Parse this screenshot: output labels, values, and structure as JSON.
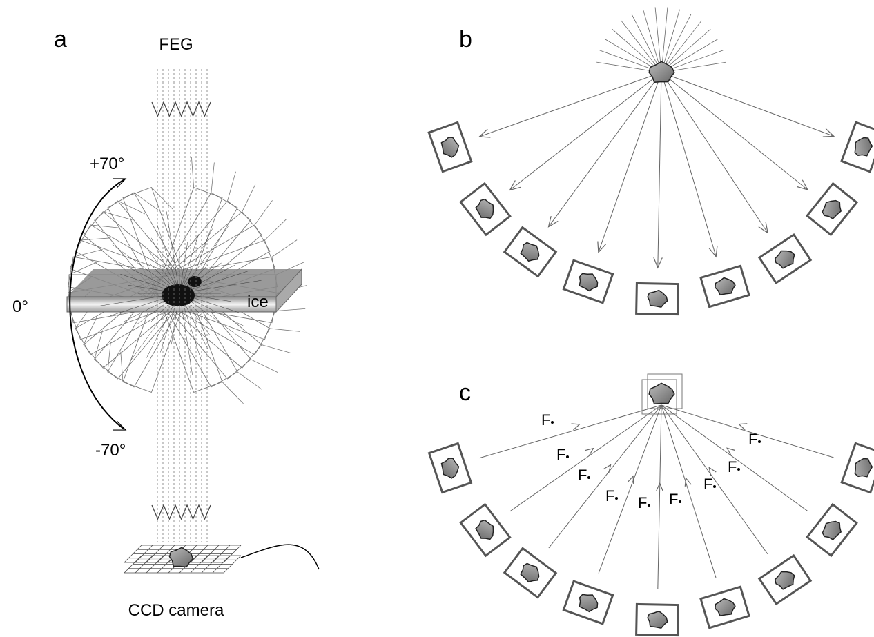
{
  "panels": {
    "a": {
      "label": "a",
      "source": "FEG",
      "angle_top": "+70°",
      "angle_zero": "0°",
      "angle_bottom": "-70°",
      "ice": "ice",
      "detector": "CCD camera"
    },
    "b": {
      "label": "b"
    },
    "c": {
      "label": "c",
      "focus_labels": [
        "F",
        "F",
        "F",
        "F",
        "F",
        "F",
        "F",
        "F",
        "F"
      ]
    }
  }
}
